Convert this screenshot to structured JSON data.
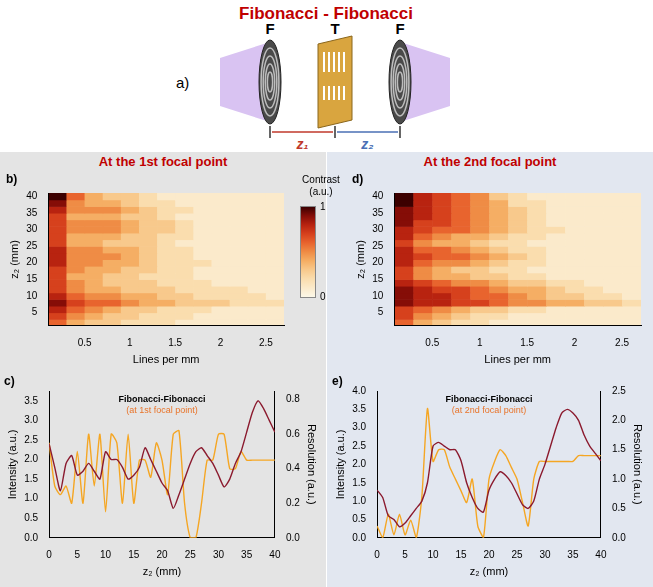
{
  "diagram": {
    "title": "Fibonacci - Fibonacci",
    "panel": "a)",
    "labels": [
      "F",
      "T",
      "F"
    ],
    "distances": [
      "z₁",
      "z₂"
    ]
  },
  "colorbar": {
    "label": "Contrast (a.u.)",
    "lim": [
      0,
      1
    ],
    "ticks": [
      0,
      1
    ]
  },
  "chart_data": [
    {
      "type": "heatmap",
      "panel": "b)",
      "title": "At the 1st focal point",
      "xlabel": "Lines per mm",
      "ylabel": "z₂ (mm)",
      "x": [
        0.2,
        0.4,
        0.6,
        0.8,
        1,
        1.2,
        1.4,
        1.6,
        1.8,
        2,
        2.2,
        2.4,
        2.6
      ],
      "y": [
        2,
        4,
        6,
        8,
        10,
        12,
        14,
        16,
        18,
        20,
        22,
        24,
        26,
        28,
        30,
        32,
        34,
        36,
        38,
        40
      ],
      "z": [
        [
          0.6,
          0.4,
          0.3,
          0.3,
          0.2,
          0.2,
          0.2,
          0.1,
          0.1,
          0.1,
          0.1,
          0.1,
          0.1
        ],
        [
          0.7,
          0.5,
          0.4,
          0.3,
          0.3,
          0.2,
          0.2,
          0.2,
          0.1,
          0.1,
          0.1,
          0.1,
          0.1
        ],
        [
          0.8,
          0.6,
          0.5,
          0.4,
          0.3,
          0.3,
          0.2,
          0.2,
          0.2,
          0.1,
          0.1,
          0.1,
          0.1
        ],
        [
          0.9,
          0.7,
          0.6,
          0.6,
          0.5,
          0.4,
          0.4,
          0.3,
          0.3,
          0.3,
          0.2,
          0.2,
          0.2
        ],
        [
          0.8,
          0.6,
          0.5,
          0.5,
          0.4,
          0.4,
          0.3,
          0.3,
          0.2,
          0.2,
          0.2,
          0.2,
          0.1
        ],
        [
          0.7,
          0.5,
          0.4,
          0.4,
          0.3,
          0.3,
          0.3,
          0.2,
          0.2,
          0.2,
          0.2,
          0.1,
          0.1
        ],
        [
          0.7,
          0.5,
          0.4,
          0.3,
          0.3,
          0.3,
          0.2,
          0.2,
          0.2,
          0.1,
          0.1,
          0.1,
          0.1
        ],
        [
          0.7,
          0.4,
          0.4,
          0.3,
          0.3,
          0.2,
          0.2,
          0.2,
          0.1,
          0.1,
          0.1,
          0.1,
          0.1
        ],
        [
          0.7,
          0.5,
          0.4,
          0.4,
          0.3,
          0.3,
          0.2,
          0.2,
          0.1,
          0.1,
          0.1,
          0.1,
          0.1
        ],
        [
          0.8,
          0.5,
          0.5,
          0.4,
          0.4,
          0.3,
          0.2,
          0.2,
          0.2,
          0.1,
          0.1,
          0.1,
          0.1
        ],
        [
          0.8,
          0.5,
          0.5,
          0.5,
          0.4,
          0.3,
          0.2,
          0.2,
          0.1,
          0.1,
          0.1,
          0.1,
          0.1
        ],
        [
          0.8,
          0.5,
          0.5,
          0.4,
          0.4,
          0.3,
          0.2,
          0.2,
          0.1,
          0.1,
          0.1,
          0.1,
          0.1
        ],
        [
          0.7,
          0.4,
          0.4,
          0.3,
          0.3,
          0.3,
          0.2,
          0.1,
          0.1,
          0.1,
          0.1,
          0.1,
          0.1
        ],
        [
          0.7,
          0.4,
          0.4,
          0.4,
          0.3,
          0.3,
          0.2,
          0.2,
          0.1,
          0.1,
          0.1,
          0.1,
          0.1
        ],
        [
          0.7,
          0.5,
          0.5,
          0.5,
          0.4,
          0.3,
          0.3,
          0.2,
          0.1,
          0.1,
          0.1,
          0.1,
          0.1
        ],
        [
          0.7,
          0.5,
          0.5,
          0.5,
          0.4,
          0.3,
          0.3,
          0.2,
          0.1,
          0.1,
          0.1,
          0.1,
          0.1
        ],
        [
          0.7,
          0.4,
          0.4,
          0.4,
          0.3,
          0.3,
          0.2,
          0.1,
          0.1,
          0.1,
          0.1,
          0.1,
          0.1
        ],
        [
          0.8,
          0.5,
          0.5,
          0.5,
          0.4,
          0.3,
          0.2,
          0.2,
          0.1,
          0.1,
          0.1,
          0.1,
          0.1
        ],
        [
          0.9,
          0.5,
          0.4,
          0.4,
          0.3,
          0.2,
          0.2,
          0.1,
          0.1,
          0.1,
          0.1,
          0.1,
          0.1
        ],
        [
          1.0,
          0.6,
          0.4,
          0.3,
          0.3,
          0.2,
          0.1,
          0.1,
          0.1,
          0.1,
          0.1,
          0.1,
          0.1
        ]
      ],
      "xlim": [
        0.1,
        2.7
      ],
      "ylim": [
        1,
        41
      ],
      "xticks": [
        0.5,
        1,
        1.5,
        2,
        2.5
      ],
      "yticks": [
        5,
        10,
        15,
        20,
        25,
        30,
        35,
        40
      ],
      "grid": false
    },
    {
      "type": "line",
      "panel": "c)",
      "title": "Fibonacci-Fibonacci",
      "subtitle": "(at 1st focal point)",
      "xlabel": "z₂ (mm)",
      "ylabel": "Intensity (a.u.)",
      "y2label": "Resolution (a.u.)",
      "x": [
        0,
        1,
        2,
        3,
        4,
        5,
        6,
        7,
        8,
        9,
        10,
        11,
        12,
        13,
        14,
        15,
        16,
        17,
        18,
        19,
        20,
        21,
        22,
        23,
        24,
        25,
        26,
        27,
        28,
        29,
        30,
        31,
        32,
        33,
        34,
        35,
        36,
        37,
        38,
        39,
        40
      ],
      "series": [
        {
          "color": "#8b1a2e",
          "values": [
            2.4,
            1.8,
            1.2,
            1.9,
            2.1,
            1.6,
            1.7,
            1.9,
            1.7,
            1.5,
            2.2,
            2.0,
            2.0,
            1.8,
            1.5,
            1.6,
            1.8,
            2.3,
            2.0,
            1.7,
            1.4,
            1.2,
            0.75,
            1.1,
            1.5,
            1.9,
            2.2,
            2.3,
            2.1,
            1.9,
            1.6,
            1.3,
            1.5,
            1.9,
            2.2,
            2.7,
            3.2,
            3.5,
            3.3,
            3.0,
            2.7
          ]
        },
        {
          "color": "#f5a623",
          "axis": "y2",
          "values": [
            0.55,
            0.3,
            0.25,
            0.3,
            0.2,
            0.5,
            0.2,
            0.6,
            0.3,
            0.6,
            0.15,
            0.6,
            0.55,
            0.2,
            0.6,
            0.2,
            0.45,
            0.45,
            0.35,
            0.55,
            0.45,
            0.25,
            0.6,
            0.62,
            0.2,
            0.0,
            0.0,
            0.2,
            0.45,
            0.45,
            0.6,
            0.6,
            0.4,
            0.4,
            0.5,
            0.45,
            0.45,
            0.45,
            0.45,
            0.45,
            0.45
          ]
        }
      ],
      "xlim": [
        0,
        40
      ],
      "xticks": [
        0,
        5,
        10,
        15,
        20,
        25,
        30,
        35,
        40
      ],
      "ylim": [
        0,
        3.75
      ],
      "yticks": [
        {
          "value": 0,
          "label": "0.0"
        },
        0.5,
        {
          "value": 1,
          "label": "1.0"
        },
        1.5,
        {
          "value": 2,
          "label": "2.0"
        },
        2.5,
        {
          "value": 3,
          "label": "3.0"
        },
        3.5
      ],
      "y2lim": [
        0,
        0.85
      ],
      "y2ticks": [
        {
          "value": 0,
          "label": "0.0"
        },
        0.2,
        0.4,
        0.6,
        0.8
      ],
      "grid": false
    },
    {
      "type": "heatmap",
      "panel": "d)",
      "title": "At the 2nd focal point",
      "xlabel": "Lines per mm",
      "ylabel": "z₂ (mm)",
      "x": [
        0.2,
        0.4,
        0.6,
        0.8,
        1,
        1.2,
        1.4,
        1.6,
        1.8,
        2,
        2.2,
        2.4,
        2.6
      ],
      "y": [
        2,
        4,
        6,
        8,
        10,
        12,
        14,
        16,
        18,
        20,
        22,
        24,
        26,
        28,
        30,
        32,
        34,
        36,
        38,
        40
      ],
      "z": [
        [
          0.6,
          0.4,
          0.3,
          0.2,
          0.2,
          0.1,
          0.1,
          0.1,
          0.1,
          0.1,
          0.1,
          0.1,
          0.1
        ],
        [
          0.7,
          0.5,
          0.4,
          0.3,
          0.2,
          0.2,
          0.1,
          0.1,
          0.1,
          0.1,
          0.1,
          0.1,
          0.1
        ],
        [
          0.7,
          0.6,
          0.5,
          0.4,
          0.3,
          0.3,
          0.2,
          0.2,
          0.1,
          0.1,
          0.1,
          0.1,
          0.1
        ],
        [
          0.9,
          0.8,
          0.8,
          0.7,
          0.7,
          0.6,
          0.5,
          0.5,
          0.4,
          0.4,
          0.3,
          0.3,
          0.2
        ],
        [
          0.9,
          0.8,
          0.8,
          0.7,
          0.6,
          0.6,
          0.5,
          0.4,
          0.3,
          0.3,
          0.2,
          0.2,
          0.1
        ],
        [
          0.9,
          0.8,
          0.7,
          0.7,
          0.6,
          0.5,
          0.4,
          0.4,
          0.3,
          0.2,
          0.2,
          0.1,
          0.1
        ],
        [
          0.8,
          0.7,
          0.6,
          0.5,
          0.5,
          0.4,
          0.3,
          0.3,
          0.2,
          0.2,
          0.1,
          0.1,
          0.1
        ],
        [
          0.7,
          0.5,
          0.4,
          0.4,
          0.3,
          0.3,
          0.2,
          0.2,
          0.1,
          0.1,
          0.1,
          0.1,
          0.1
        ],
        [
          0.7,
          0.5,
          0.4,
          0.3,
          0.3,
          0.2,
          0.2,
          0.1,
          0.1,
          0.1,
          0.1,
          0.1,
          0.1
        ],
        [
          0.8,
          0.6,
          0.5,
          0.5,
          0.4,
          0.3,
          0.2,
          0.2,
          0.1,
          0.1,
          0.1,
          0.1,
          0.1
        ],
        [
          0.8,
          0.7,
          0.6,
          0.6,
          0.5,
          0.4,
          0.3,
          0.2,
          0.1,
          0.1,
          0.1,
          0.1,
          0.1
        ],
        [
          0.8,
          0.6,
          0.6,
          0.5,
          0.4,
          0.3,
          0.2,
          0.2,
          0.1,
          0.1,
          0.1,
          0.1,
          0.1
        ],
        [
          0.7,
          0.5,
          0.4,
          0.4,
          0.3,
          0.2,
          0.2,
          0.1,
          0.1,
          0.1,
          0.1,
          0.1,
          0.1
        ],
        [
          0.8,
          0.6,
          0.5,
          0.4,
          0.4,
          0.3,
          0.2,
          0.2,
          0.1,
          0.1,
          0.1,
          0.1,
          0.1
        ],
        [
          0.8,
          0.7,
          0.6,
          0.6,
          0.5,
          0.4,
          0.3,
          0.2,
          0.2,
          0.1,
          0.1,
          0.1,
          0.1
        ],
        [
          0.9,
          0.7,
          0.7,
          0.6,
          0.5,
          0.4,
          0.3,
          0.2,
          0.1,
          0.1,
          0.1,
          0.1,
          0.1
        ],
        [
          0.9,
          0.8,
          0.7,
          0.6,
          0.5,
          0.4,
          0.3,
          0.2,
          0.1,
          0.1,
          0.1,
          0.1,
          0.1
        ],
        [
          0.9,
          0.8,
          0.7,
          0.6,
          0.5,
          0.4,
          0.3,
          0.2,
          0.1,
          0.1,
          0.1,
          0.1,
          0.1
        ],
        [
          1.0,
          0.8,
          0.7,
          0.6,
          0.5,
          0.4,
          0.2,
          0.2,
          0.1,
          0.1,
          0.1,
          0.1,
          0.1
        ],
        [
          1.0,
          0.8,
          0.7,
          0.6,
          0.5,
          0.3,
          0.2,
          0.1,
          0.1,
          0.1,
          0.1,
          0.1,
          0.1
        ]
      ],
      "xlim": [
        0.1,
        2.7
      ],
      "ylim": [
        1,
        41
      ],
      "xticks": [
        0.5,
        1,
        1.5,
        2,
        2.5
      ],
      "yticks": [
        5,
        10,
        15,
        20,
        25,
        30,
        35,
        40
      ],
      "grid": false
    },
    {
      "type": "line",
      "panel": "e)",
      "title": "Fibonacci-Fibonacci",
      "subtitle": "(at 2nd focal point)",
      "xlabel": "z₂ (mm)",
      "ylabel": "Intensity (a.u.)",
      "y2label": "Resolution (a.u.)",
      "x": [
        0,
        1,
        2,
        3,
        4,
        5,
        6,
        7,
        8,
        9,
        10,
        11,
        12,
        13,
        14,
        15,
        16,
        17,
        18,
        19,
        20,
        21,
        22,
        23,
        24,
        25,
        26,
        27,
        28,
        29,
        30,
        31,
        32,
        33,
        34,
        35,
        36,
        37,
        38,
        39,
        40
      ],
      "series": [
        {
          "color": "#8b1a2e",
          "values": [
            1.3,
            1.1,
            0.6,
            0.5,
            0.3,
            0.4,
            0.6,
            0.8,
            1.0,
            1.5,
            2.5,
            2.6,
            2.5,
            2.4,
            2.4,
            2.1,
            1.5,
            1.1,
            0.8,
            0.7,
            1.3,
            1.6,
            1.8,
            1.7,
            1.5,
            1.2,
            0.9,
            0.8,
            1.0,
            1.6,
            2.0,
            2.5,
            3.0,
            3.4,
            3.5,
            3.4,
            3.2,
            2.8,
            2.5,
            2.3,
            2.1
          ]
        },
        {
          "color": "#f5a623",
          "axis": "y2",
          "values": [
            0.2,
            0.0,
            0.4,
            0.05,
            0.4,
            0.05,
            0.3,
            0.0,
            0.7,
            2.2,
            1.3,
            1.5,
            1.5,
            1.2,
            1.0,
            0.8,
            0.6,
            1.0,
            0.2,
            0.0,
            1.0,
            1.3,
            1.5,
            1.4,
            1.2,
            1.0,
            0.6,
            0.2,
            1.0,
            1.3,
            1.3,
            1.3,
            1.3,
            1.3,
            1.3,
            1.3,
            1.4,
            1.4,
            1.4,
            1.4,
            1.4
          ]
        }
      ],
      "xlim": [
        0,
        40
      ],
      "xticks": [
        0,
        5,
        10,
        15,
        20,
        25,
        30,
        35,
        40
      ],
      "ylim": [
        0,
        4
      ],
      "yticks": [
        {
          "value": 0,
          "label": "0.0"
        },
        0.5,
        {
          "value": 1,
          "label": "1.0"
        },
        1.5,
        {
          "value": 2,
          "label": "2.0"
        },
        2.5,
        {
          "value": 3,
          "label": "3.0"
        },
        3.5,
        {
          "value": 4,
          "label": "4.0"
        }
      ],
      "y2lim": [
        0,
        2.5
      ],
      "y2ticks": [
        {
          "value": 0,
          "label": "0.0"
        },
        0.5,
        {
          "value": 1,
          "label": "1.0"
        },
        1.5,
        {
          "value": 2,
          "label": "2.0"
        },
        2.5
      ],
      "grid": false
    }
  ]
}
